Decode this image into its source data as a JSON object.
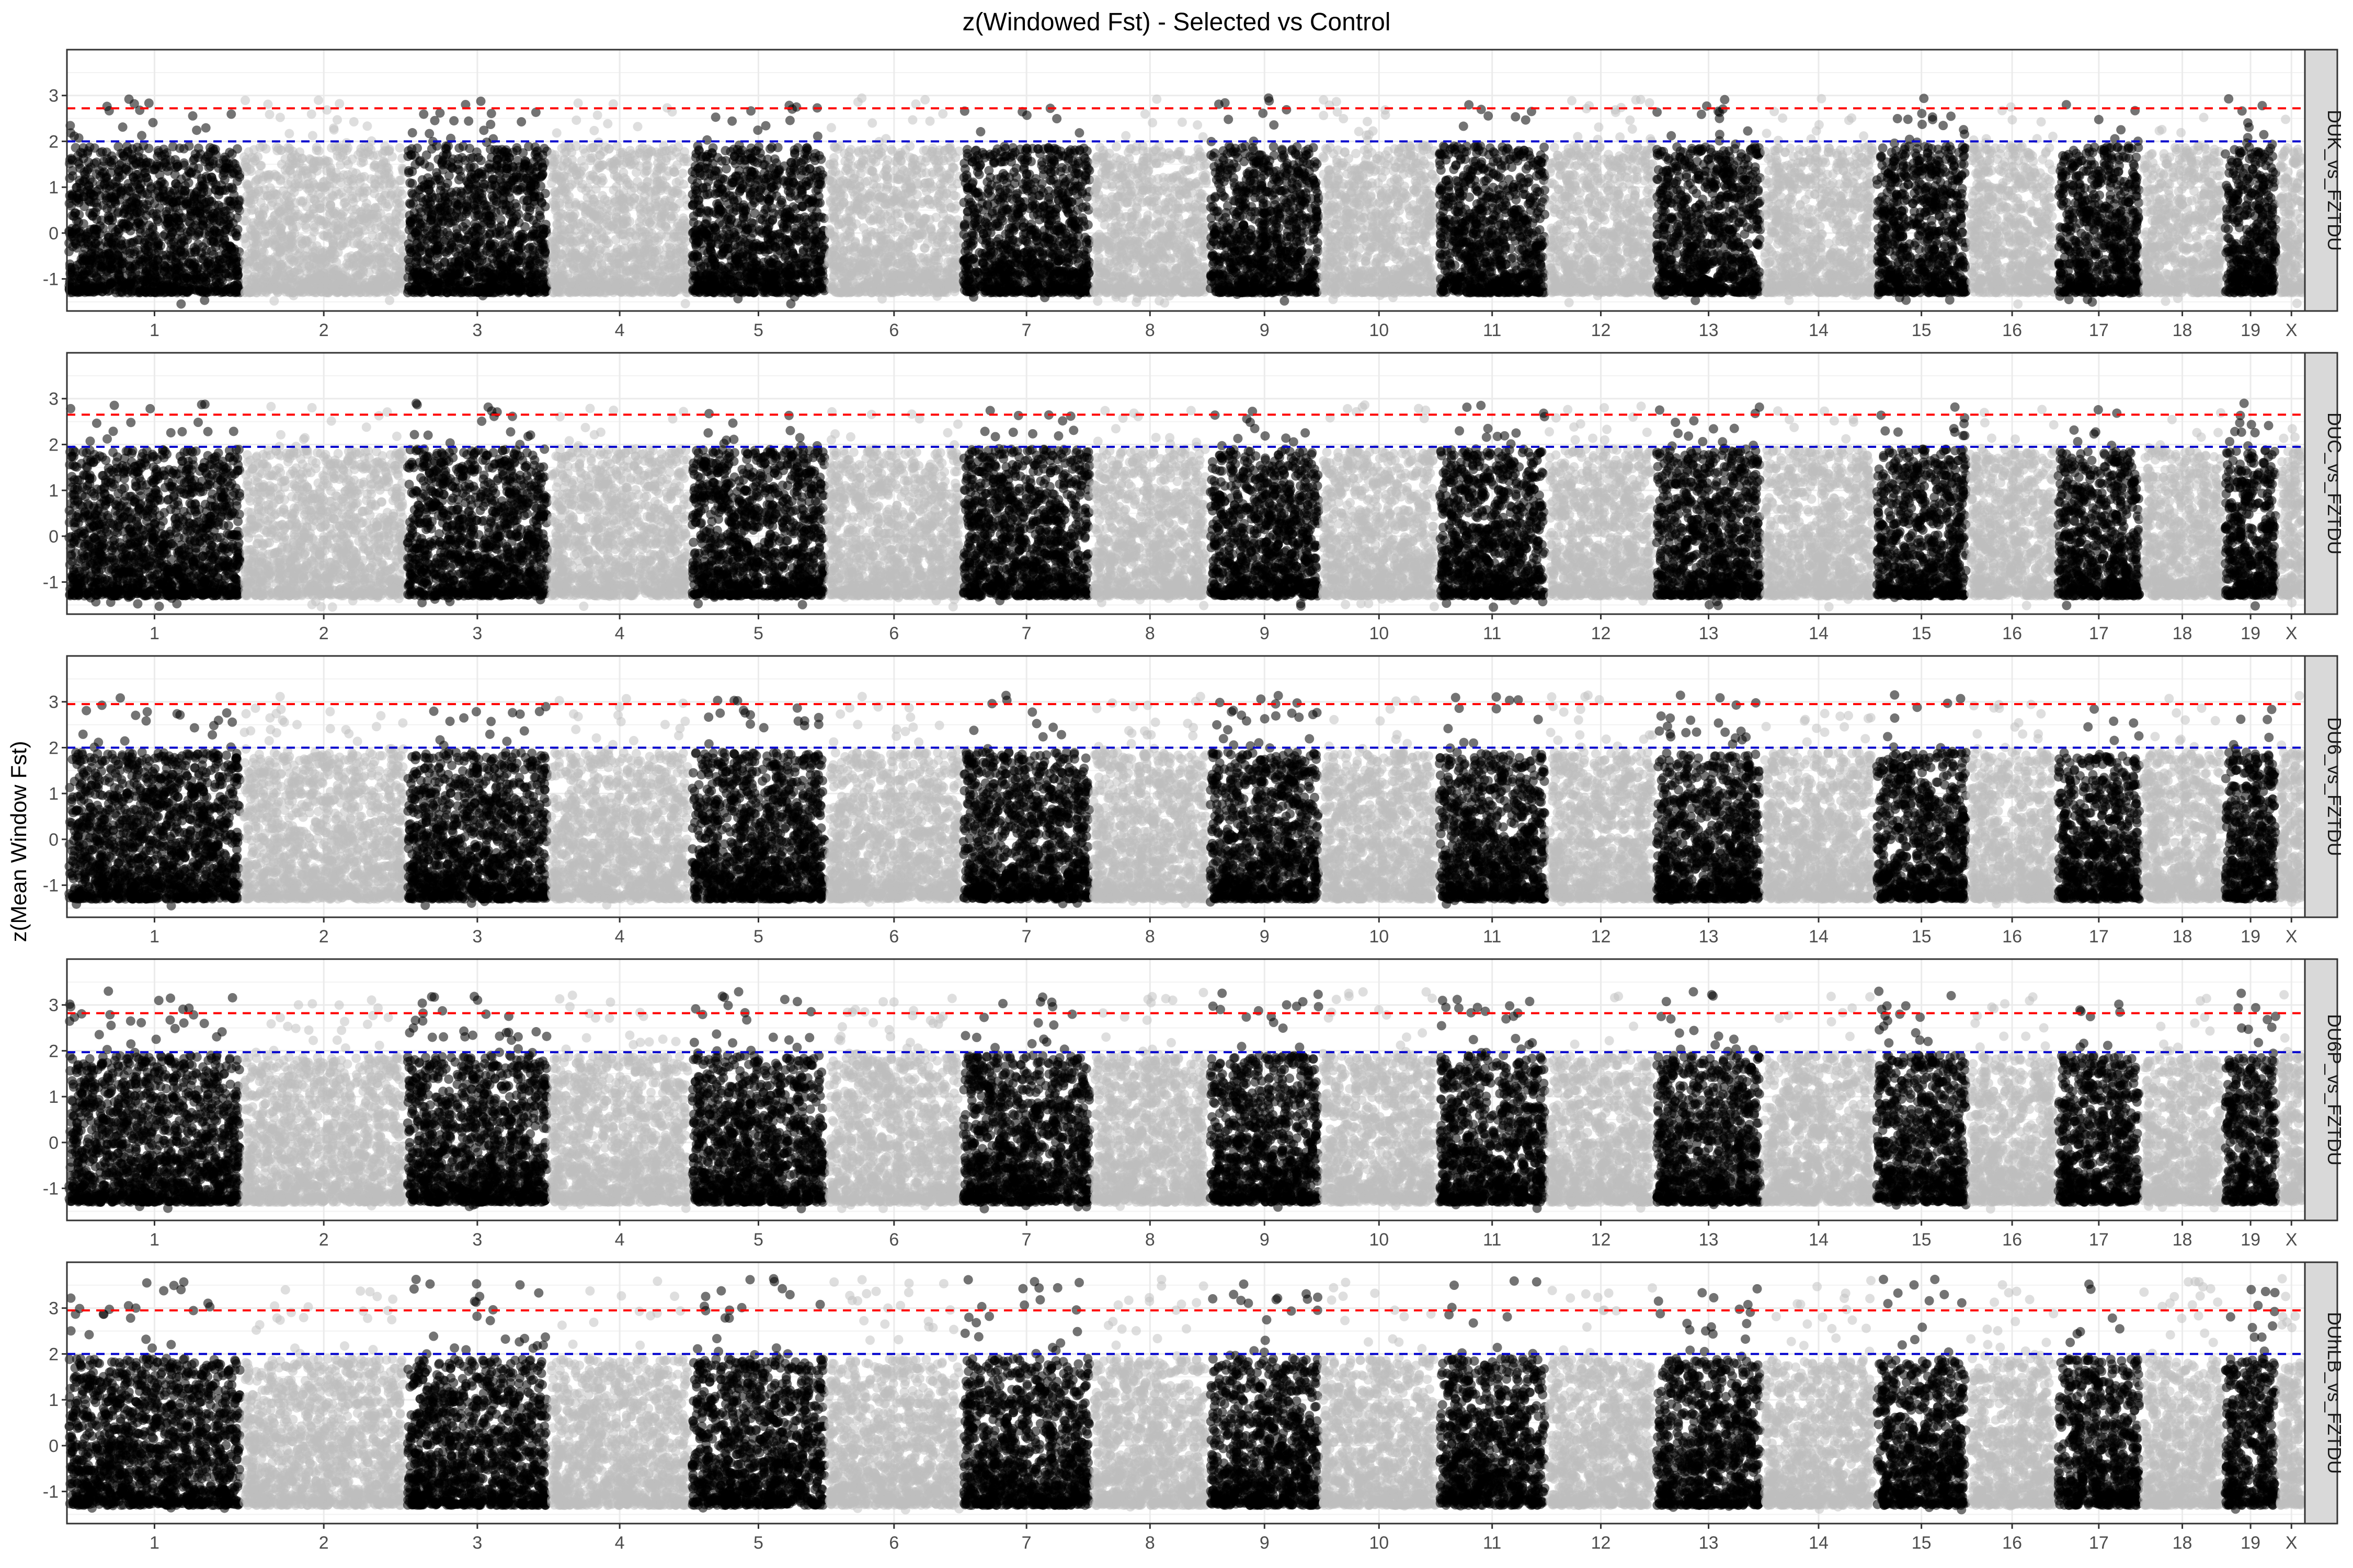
{
  "chart_data": {
    "type": "scatter",
    "title": "z(Windowed Fst) - Selected vs Control",
    "xlabel": "",
    "ylabel": "z(Mean Window Fst)",
    "ylim": [
      -1.7,
      4.0
    ],
    "y_ticks": [
      -1,
      0,
      1,
      2,
      3
    ],
    "grid": true,
    "legend": "none",
    "colors": {
      "odd_chromosome": "#000000",
      "even_chromosome": "#bebebe",
      "upper_threshold": "#ff0000",
      "lower_threshold": "#0000cd",
      "panel_border": "#333333",
      "strip_fill": "#d9d9d9",
      "gridline": "#ebebeb"
    },
    "chromosomes": [
      "1",
      "2",
      "3",
      "4",
      "5",
      "6",
      "7",
      "8",
      "9",
      "10",
      "11",
      "12",
      "13",
      "14",
      "15",
      "16",
      "17",
      "18",
      "19",
      "X"
    ],
    "chromosome_relative_lengths": [
      195,
      182,
      160,
      157,
      152,
      150,
      145,
      130,
      125,
      130,
      122,
      120,
      120,
      125,
      104,
      98,
      95,
      91,
      61,
      30
    ],
    "panels": [
      {
        "strip": "DUK_vs_FZTDU",
        "threshold_upper": 2.72,
        "threshold_lower": 2.0,
        "z_min": -1.55,
        "z_max": 2.95
      },
      {
        "strip": "DUC_vs_FZTDU",
        "threshold_upper": 2.65,
        "threshold_lower": 1.95,
        "z_min": -1.55,
        "z_max": 2.9
      },
      {
        "strip": "DU6_vs_FZTDU",
        "threshold_upper": 2.95,
        "threshold_lower": 2.0,
        "z_min": -1.45,
        "z_max": 3.15
      },
      {
        "strip": "DU6P_vs_FZTDU",
        "threshold_upper": 2.82,
        "threshold_lower": 1.97,
        "z_min": -1.45,
        "z_max": 3.3
      },
      {
        "strip": "DUhLB_vs_FZTDU",
        "threshold_upper": 2.95,
        "threshold_lower": 2.0,
        "z_min": -1.4,
        "z_max": 3.65
      }
    ]
  }
}
